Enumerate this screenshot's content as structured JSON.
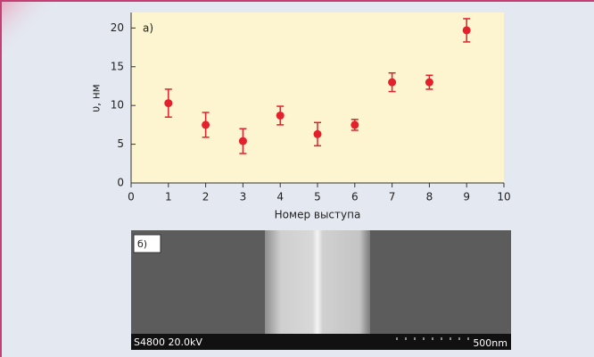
{
  "chart_data": {
    "type": "scatter",
    "annotation": "а)",
    "ylabel": "υ, нм",
    "xlabel": "Номер выступа",
    "x": [
      1,
      2,
      3,
      4,
      5,
      6,
      7,
      8,
      9
    ],
    "series": [
      {
        "color": "#e3202b",
        "values": [
          10.3,
          7.5,
          5.4,
          8.7,
          6.3,
          7.5,
          13.0,
          13.0,
          19.7
        ],
        "errors": [
          1.8,
          1.6,
          1.6,
          1.2,
          1.5,
          0.7,
          1.2,
          0.9,
          1.5
        ]
      }
    ],
    "xlim": [
      0,
      10
    ],
    "xticks": [
      0,
      1,
      2,
      3,
      4,
      5,
      6,
      7,
      8,
      9,
      10
    ],
    "ylim": [
      0,
      22
    ],
    "yticks": [
      0,
      5,
      10,
      15,
      20
    ],
    "grid": false
  },
  "image": {
    "label": "б)",
    "instrument": "S4800 20.0kV",
    "scale": "500nm"
  }
}
